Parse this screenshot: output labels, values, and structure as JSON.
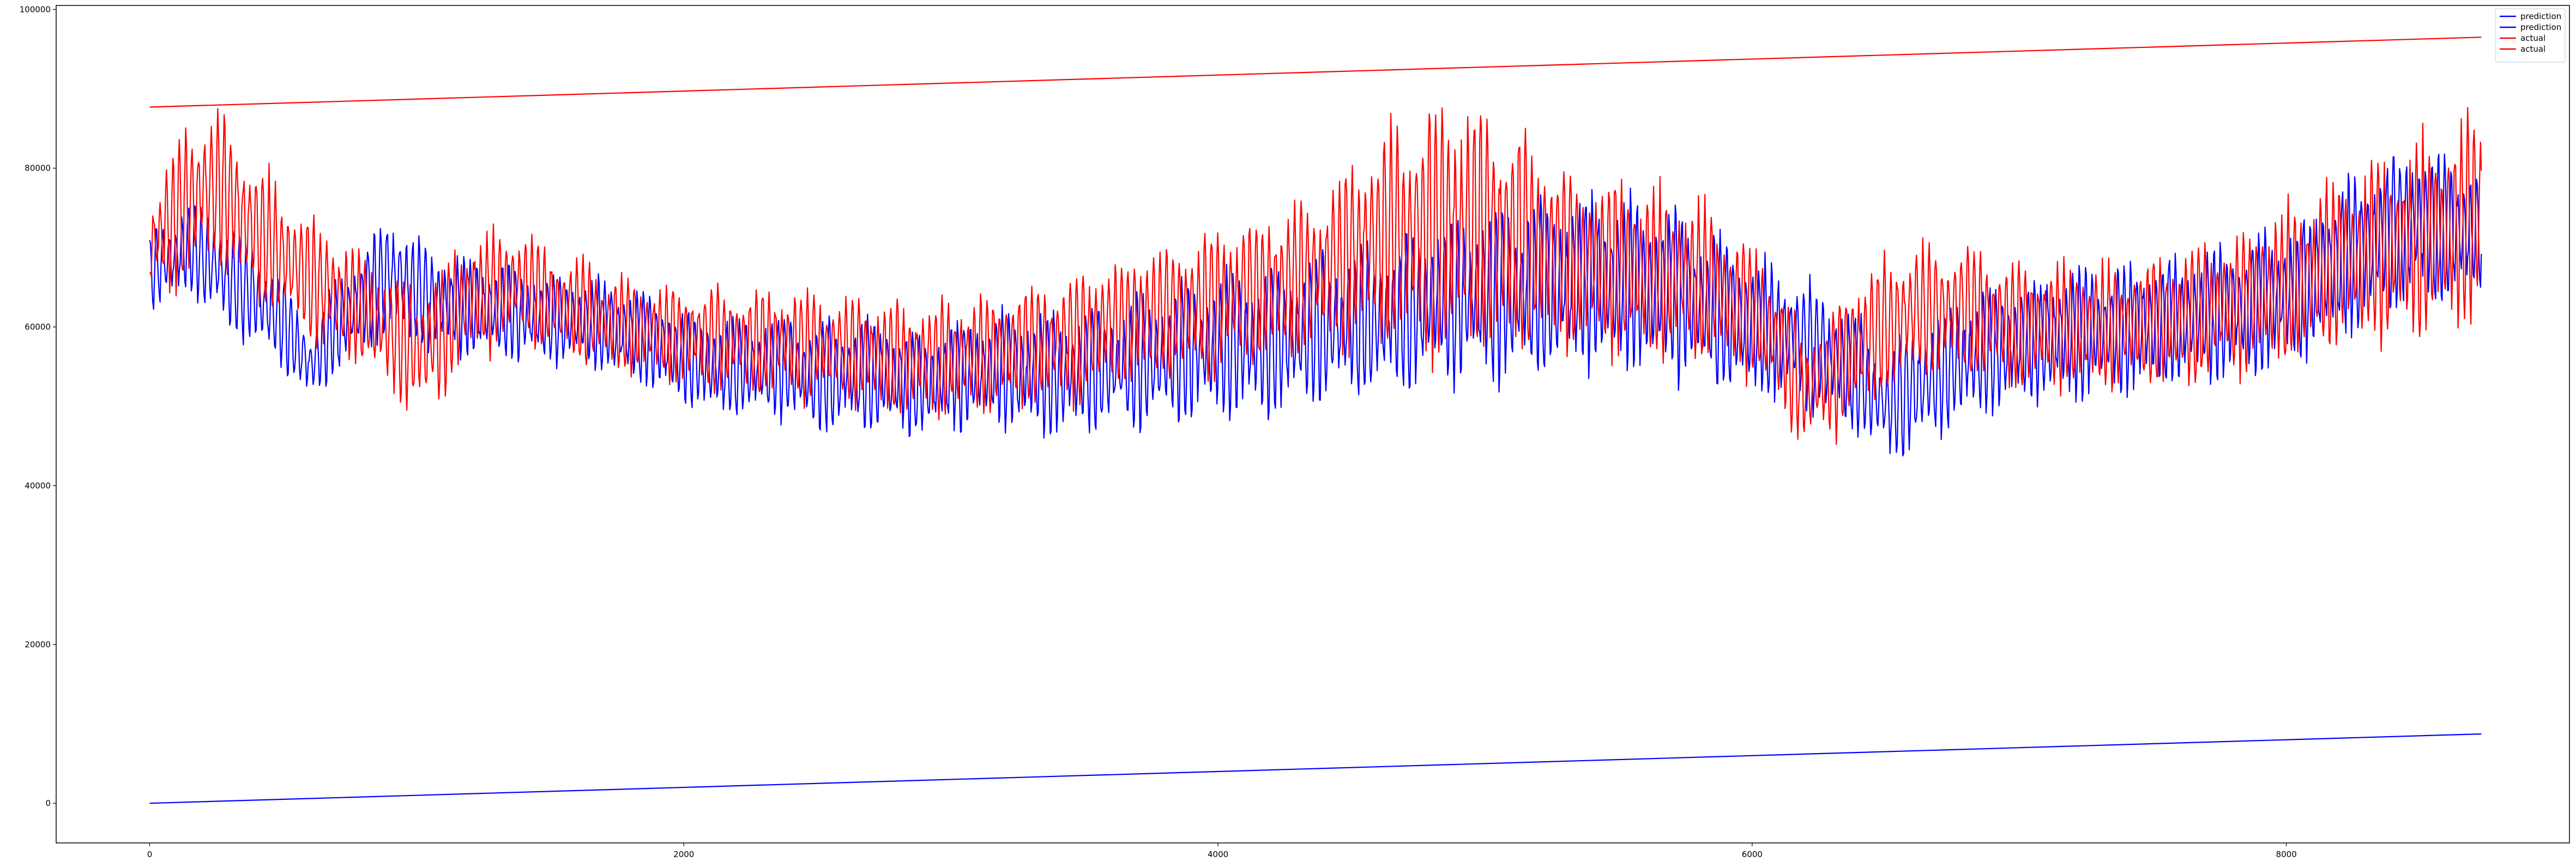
{
  "chart_data": {
    "type": "line",
    "title": "",
    "xlabel": "",
    "ylabel": "",
    "xlim": [
      -350,
      9060
    ],
    "ylim": [
      -5000,
      100500
    ],
    "x_ticks": [
      0,
      2000,
      4000,
      6000,
      8000
    ],
    "y_ticks": [
      0,
      20000,
      40000,
      60000,
      80000,
      100000
    ],
    "x_tick_labels": [
      "0",
      "2000",
      "4000",
      "6000",
      "8000"
    ],
    "y_tick_labels": [
      "0",
      "20000",
      "40000",
      "60000",
      "80000",
      "100000"
    ],
    "grid": false,
    "legend_position": "top-right",
    "series": [
      {
        "name": "prediction",
        "color": "#0000ff",
        "x": [
          0,
          8730
        ],
        "values": [
          0,
          8730
        ]
      },
      {
        "name": "prediction",
        "color": "#0000ff",
        "x": [
          0,
          150,
          300,
          500,
          600,
          700,
          900,
          1000,
          1100,
          1300,
          1500,
          1700,
          1900,
          2000,
          2100,
          2300,
          2500,
          2700,
          2900,
          3000,
          3200,
          3400,
          3600,
          3800,
          4000,
          4200,
          4400,
          4600,
          4800,
          5000,
          5200,
          5400,
          5600,
          5800,
          6000,
          6200,
          6400,
          6500,
          6600,
          6800,
          7000,
          7200,
          7400,
          7600,
          7800,
          8000,
          8200,
          8400,
          8500,
          8600,
          8700,
          8730
        ],
        "mean": [
          67000,
          70000,
          66000,
          61000,
          55000,
          60000,
          67000,
          64000,
          63000,
          62000,
          61000,
          60000,
          58000,
          56000,
          55000,
          55000,
          54000,
          54000,
          53000,
          54000,
          55000,
          54000,
          55000,
          56000,
          58000,
          58000,
          60000,
          61000,
          63000,
          64000,
          65000,
          66000,
          65000,
          63000,
          60000,
          58000,
          54000,
          50000,
          52000,
          56000,
          58000,
          59000,
          60000,
          61000,
          62000,
          64000,
          68000,
          72000,
          73000,
          72000,
          72000,
          72000
        ],
        "amp": [
          5000,
          6000,
          7000,
          6000,
          5000,
          6000,
          8000,
          7000,
          6500,
          6000,
          6000,
          6000,
          6000,
          6000,
          6000,
          6500,
          7000,
          7000,
          7000,
          7000,
          7500,
          8000,
          8000,
          8500,
          9000,
          9000,
          9000,
          9500,
          10000,
          11000,
          11000,
          11000,
          11000,
          10000,
          9000,
          8000,
          7500,
          7000,
          7500,
          8000,
          8000,
          8000,
          8000,
          8000,
          8500,
          9000,
          9500,
          10000,
          10000,
          9000,
          8000,
          7000
        ]
      },
      {
        "name": "actual",
        "color": "#ff0000",
        "x": [
          0,
          8730
        ],
        "values": [
          87700,
          96500
        ]
      },
      {
        "name": "actual",
        "color": "#ff0000",
        "x": [
          0,
          150,
          250,
          400,
          600,
          800,
          1000,
          1100,
          1200,
          1400,
          1600,
          1800,
          2000,
          2200,
          2400,
          2600,
          2800,
          3000,
          3200,
          3400,
          3600,
          3800,
          4000,
          4200,
          4400,
          4600,
          4800,
          5000,
          5200,
          5400,
          5600,
          5800,
          6000,
          6100,
          6200,
          6300,
          6400,
          6600,
          6800,
          7000,
          7200,
          7400,
          7600,
          7800,
          8000,
          8200,
          8400,
          8600,
          8730
        ],
        "mean": [
          70000,
          76000,
          78000,
          72000,
          66000,
          62000,
          57000,
          60000,
          64000,
          65000,
          62000,
          60000,
          59000,
          58000,
          58000,
          57000,
          56000,
          56000,
          57000,
          58000,
          60000,
          62000,
          63000,
          65000,
          67000,
          71000,
          72000,
          72000,
          70000,
          68000,
          67000,
          66000,
          62000,
          58000,
          52000,
          54000,
          58000,
          62000,
          62000,
          60000,
          60000,
          60000,
          61000,
          63000,
          65000,
          68000,
          70000,
          72000,
          74000
        ],
        "amp": [
          7000,
          10000,
          10000,
          9000,
          8000,
          7000,
          8000,
          9000,
          8000,
          7000,
          6500,
          6000,
          6000,
          6500,
          7000,
          7000,
          7000,
          7000,
          7500,
          8000,
          8000,
          8500,
          9000,
          9500,
          10000,
          13000,
          16000,
          16000,
          13000,
          11000,
          11000,
          10000,
          9000,
          8000,
          7000,
          8000,
          8500,
          8500,
          8000,
          8000,
          8000,
          8000,
          8500,
          9000,
          10000,
          11000,
          12000,
          13000,
          12000
        ]
      }
    ],
    "legend": [
      {
        "label": "prediction",
        "color": "#0000ff"
      },
      {
        "label": "prediction",
        "color": "#0000ff"
      },
      {
        "label": "actual",
        "color": "#ff0000"
      },
      {
        "label": "actual",
        "color": "#ff0000"
      }
    ]
  }
}
